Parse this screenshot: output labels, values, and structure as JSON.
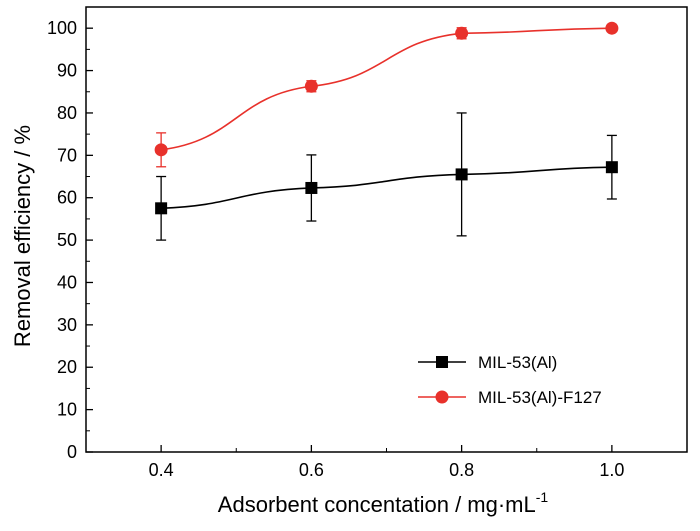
{
  "chart_data": {
    "type": "line",
    "xlabel": "Adsorbent concentation / mg·mL",
    "xlabel_superscript": "-1",
    "ylabel": "Removal efficiency / %",
    "xlim": [
      0.3,
      1.1
    ],
    "ylim": [
      0,
      105
    ],
    "x_ticks": [
      "0.4",
      "0.6",
      "0.8",
      "1.0"
    ],
    "y_ticks": [
      "0",
      "10",
      "20",
      "30",
      "40",
      "50",
      "60",
      "70",
      "80",
      "90",
      "100"
    ],
    "legend_position": "bottom-right",
    "grid": false,
    "x": [
      0.4,
      0.6,
      0.8,
      1.0
    ],
    "series": [
      {
        "name": "MIL-53(Al)",
        "color": "#000000",
        "marker": "square",
        "values": [
          57.5,
          62.3,
          65.5,
          67.2
        ],
        "error": [
          7.5,
          7.8,
          14.5,
          7.5
        ]
      },
      {
        "name": "MIL-53(Al)-F127",
        "color": "#e8312b",
        "marker": "circle",
        "values": [
          71.3,
          86.3,
          98.8,
          100.0
        ],
        "error": [
          4.0,
          1.3,
          1.3,
          0.0
        ]
      }
    ]
  }
}
